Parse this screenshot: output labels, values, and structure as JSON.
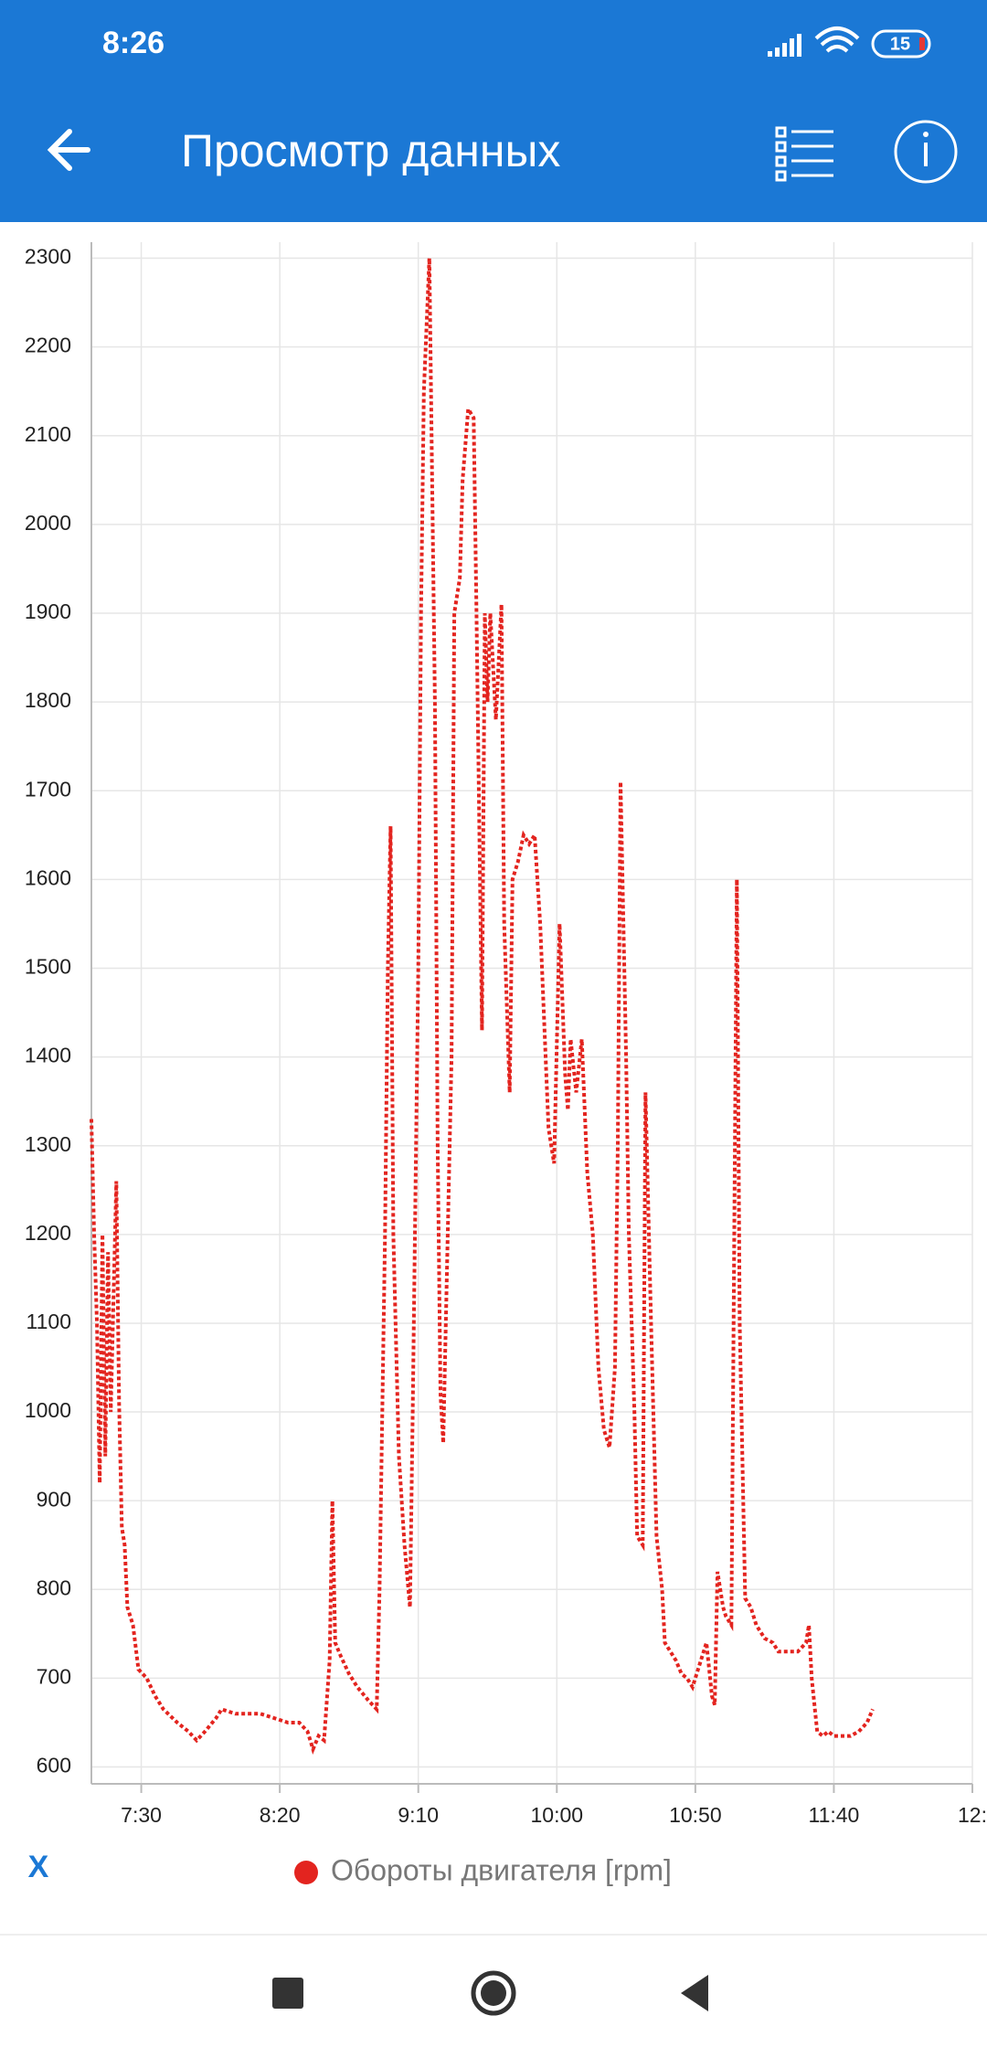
{
  "status_bar": {
    "time": "8:26",
    "battery": "15"
  },
  "app_bar": {
    "title": "Просмотр данных"
  },
  "x_button": "X",
  "chart_data": {
    "type": "line",
    "x": [
      432,
      433,
      434,
      435,
      436,
      437,
      438,
      439,
      441,
      442,
      443,
      444,
      445,
      447,
      449,
      452,
      455,
      458,
      463,
      467,
      470,
      473,
      477,
      479,
      484,
      489,
      493,
      498,
      503,
      507,
      510,
      512,
      514,
      516,
      518,
      519,
      520,
      522,
      525,
      528,
      532,
      535,
      536,
      538,
      539,
      540,
      541,
      543,
      545,
      547,
      548,
      550,
      551,
      552,
      554,
      556,
      557,
      558,
      559,
      562,
      563,
      565,
      566,
      568,
      570,
      571,
      573,
      574,
      575,
      576,
      578,
      580,
      581,
      583,
      584,
      586,
      588,
      590,
      592,
      594,
      597,
      598,
      599,
      601,
      603,
      604,
      605,
      607,
      609,
      611,
      613,
      615,
      617,
      619,
      621,
      622,
      623,
      625,
      626,
      628,
      629,
      631,
      632,
      634,
      636,
      638,
      639,
      641,
      643,
      645,
      647,
      649,
      652,
      654,
      656,
      657,
      658,
      660,
      661,
      663,
      665,
      666,
      668,
      670,
      672,
      675,
      678,
      680,
      684,
      687,
      690,
      691,
      692,
      694,
      696,
      698,
      700,
      704,
      706,
      709,
      712,
      714
    ],
    "series": [
      {
        "name": "Обороты двигателя [rpm]",
        "color": "#e3241f",
        "values": [
          1330,
          1200,
          1100,
          920,
          1200,
          950,
          1180,
          1000,
          1260,
          1010,
          870,
          850,
          780,
          760,
          710,
          700,
          680,
          665,
          650,
          640,
          630,
          640,
          655,
          665,
          660,
          660,
          660,
          655,
          650,
          650,
          640,
          620,
          635,
          630,
          720,
          900,
          740,
          725,
          705,
          690,
          675,
          665,
          800,
          1200,
          1500,
          1660,
          1200,
          950,
          850,
          780,
          1000,
          1500,
          1900,
          2150,
          2300,
          1800,
          1300,
          1020,
          965,
          1400,
          1900,
          1940,
          2050,
          2130,
          2120,
          1900,
          1430,
          1900,
          1800,
          1900,
          1780,
          1910,
          1550,
          1360,
          1600,
          1620,
          1650,
          1640,
          1650,
          1550,
          1320,
          1300,
          1280,
          1550,
          1380,
          1340,
          1420,
          1360,
          1420,
          1270,
          1200,
          1050,
          980,
          960,
          1050,
          1300,
          1710,
          1400,
          1200,
          1000,
          860,
          850,
          1360,
          1100,
          860,
          800,
          740,
          730,
          720,
          705,
          700,
          690,
          720,
          740,
          680,
          670,
          820,
          780,
          770,
          760,
          1600,
          1100,
          790,
          780,
          760,
          745,
          740,
          730,
          730,
          730,
          740,
          760,
          700,
          640,
          635,
          640,
          635,
          635,
          635,
          640,
          650,
          665
        ]
      }
    ],
    "xlim": [
      432,
      750
    ],
    "xticks": [
      {
        "value": 450,
        "label": "7:30"
      },
      {
        "value": 500,
        "label": "8:20"
      },
      {
        "value": 550,
        "label": "9:10"
      },
      {
        "value": 600,
        "label": "10:00"
      },
      {
        "value": 650,
        "label": "10:50"
      },
      {
        "value": 700,
        "label": "11:40"
      },
      {
        "value": 750,
        "label": "12:"
      }
    ],
    "ylim": [
      581,
      2318
    ],
    "yticks": [
      600,
      700,
      800,
      900,
      1000,
      1100,
      1200,
      1300,
      1400,
      1500,
      1600,
      1700,
      1800,
      1900,
      2000,
      2100,
      2200,
      2300
    ],
    "grid": true,
    "line_style": "dotted"
  }
}
